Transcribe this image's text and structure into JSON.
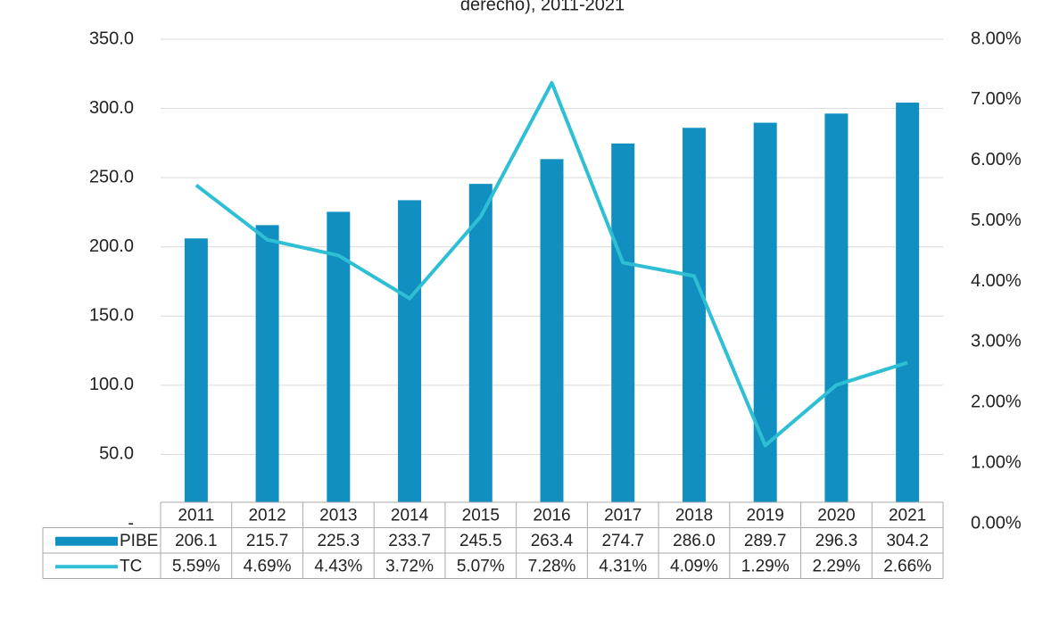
{
  "chart_data": {
    "type": "bar-line",
    "title": "derecho), 2011-2021",
    "categories": [
      "2011",
      "2012",
      "2013",
      "2014",
      "2015",
      "2016",
      "2017",
      "2018",
      "2019",
      "2020",
      "2021"
    ],
    "series": [
      {
        "name": "PIBE",
        "type": "bar",
        "color": "#108fc0",
        "values": [
          206.1,
          215.7,
          225.3,
          233.7,
          245.5,
          263.4,
          274.7,
          286.0,
          289.7,
          296.3,
          304.2
        ],
        "value_labels": [
          "206.1",
          "215.7",
          "225.3",
          "233.7",
          "245.5",
          "263.4",
          "274.7",
          "286.0",
          "289.7",
          "296.3",
          "304.2"
        ]
      },
      {
        "name": "TC",
        "type": "line",
        "axis": "y2",
        "color": "#2fbfd4",
        "values": [
          5.59,
          4.69,
          4.43,
          3.72,
          5.07,
          7.28,
          4.31,
          4.09,
          1.29,
          2.29,
          2.66
        ],
        "value_labels": [
          "5.59%",
          "4.69%",
          "4.43%",
          "3.72%",
          "5.07%",
          "7.28%",
          "4.31%",
          "4.09%",
          "1.29%",
          "2.29%",
          "2.66%"
        ]
      }
    ],
    "ylim": [
      0,
      350
    ],
    "yticks": [
      {
        "value": 0,
        "label": "-"
      },
      {
        "value": 50,
        "label": "50.0"
      },
      {
        "value": 100,
        "label": "100.0"
      },
      {
        "value": 150,
        "label": "150.0"
      },
      {
        "value": 200,
        "label": "200.0"
      },
      {
        "value": 250,
        "label": "250.0"
      },
      {
        "value": 300,
        "label": "300.0"
      },
      {
        "value": 350,
        "label": "350.0"
      }
    ],
    "y2lim": [
      0,
      8
    ],
    "y2ticks": [
      {
        "value": 0,
        "label": "0.00%"
      },
      {
        "value": 1,
        "label": "1.00%"
      },
      {
        "value": 2,
        "label": "2.00%"
      },
      {
        "value": 3,
        "label": "3.00%"
      },
      {
        "value": 4,
        "label": "4.00%"
      },
      {
        "value": 5,
        "label": "5.00%"
      },
      {
        "value": 6,
        "label": "6.00%"
      },
      {
        "value": 7,
        "label": "7.00%"
      },
      {
        "value": 8,
        "label": "8.00%"
      }
    ],
    "grid": true,
    "data_table": true
  }
}
